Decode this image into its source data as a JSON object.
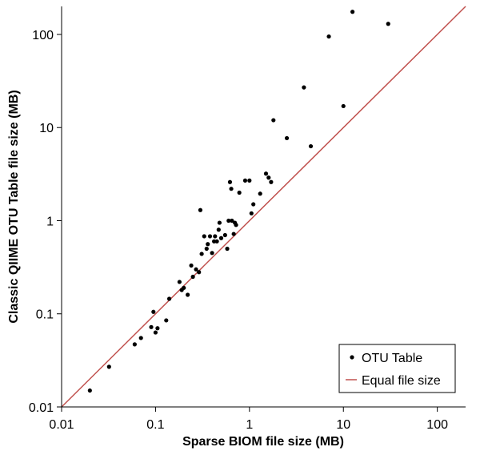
{
  "chart_data": {
    "type": "scatter",
    "title": "",
    "xlabel": "Sparse BIOM file size (MB)",
    "ylabel": "Classic QIIME OTU Table file size (MB)",
    "xscale": "log",
    "yscale": "log",
    "xlim": [
      0.01,
      200
    ],
    "ylim": [
      0.01,
      200
    ],
    "x_ticks": [
      "0.01",
      "0.1",
      "1",
      "10",
      "100"
    ],
    "y_ticks": [
      "0.01",
      "0.1",
      "1",
      "10",
      "100"
    ],
    "grid": false,
    "legend_position": "bottom-right",
    "series": [
      {
        "name": "OTU Table",
        "kind": "scatter",
        "color": "#000000",
        "points": [
          [
            0.02,
            0.015
          ],
          [
            0.032,
            0.027
          ],
          [
            0.06,
            0.047
          ],
          [
            0.07,
            0.055
          ],
          [
            0.09,
            0.072
          ],
          [
            0.095,
            0.105
          ],
          [
            0.1,
            0.063
          ],
          [
            0.105,
            0.07
          ],
          [
            0.13,
            0.085
          ],
          [
            0.14,
            0.145
          ],
          [
            0.18,
            0.22
          ],
          [
            0.19,
            0.18
          ],
          [
            0.2,
            0.19
          ],
          [
            0.22,
            0.16
          ],
          [
            0.24,
            0.33
          ],
          [
            0.25,
            0.25
          ],
          [
            0.27,
            0.3
          ],
          [
            0.29,
            0.28
          ],
          [
            0.3,
            1.3
          ],
          [
            0.31,
            0.44
          ],
          [
            0.33,
            0.68
          ],
          [
            0.35,
            0.5
          ],
          [
            0.36,
            0.56
          ],
          [
            0.38,
            0.68
          ],
          [
            0.4,
            0.45
          ],
          [
            0.42,
            0.6
          ],
          [
            0.43,
            0.68
          ],
          [
            0.45,
            0.6
          ],
          [
            0.47,
            0.8
          ],
          [
            0.48,
            0.95
          ],
          [
            0.5,
            0.65
          ],
          [
            0.55,
            0.7
          ],
          [
            0.58,
            0.5
          ],
          [
            0.6,
            1.0
          ],
          [
            0.62,
            2.6
          ],
          [
            0.64,
            2.2
          ],
          [
            0.65,
            1.0
          ],
          [
            0.68,
            0.72
          ],
          [
            0.7,
            0.95
          ],
          [
            0.72,
            0.9
          ],
          [
            0.78,
            2.0
          ],
          [
            0.9,
            2.7
          ],
          [
            1.0,
            2.7
          ],
          [
            1.05,
            1.2
          ],
          [
            1.1,
            1.5
          ],
          [
            1.3,
            1.95
          ],
          [
            1.5,
            3.2
          ],
          [
            1.6,
            2.9
          ],
          [
            1.7,
            2.6
          ],
          [
            1.8,
            12
          ],
          [
            2.5,
            7.7
          ],
          [
            3.8,
            27
          ],
          [
            4.5,
            6.3
          ],
          [
            7.0,
            95
          ],
          [
            10,
            17
          ],
          [
            12.5,
            175
          ],
          [
            30,
            130
          ]
        ]
      },
      {
        "name": "Equal file size",
        "kind": "line",
        "color": "#c0504d",
        "points": [
          [
            0.01,
            0.01
          ],
          [
            200,
            200
          ]
        ]
      }
    ]
  }
}
